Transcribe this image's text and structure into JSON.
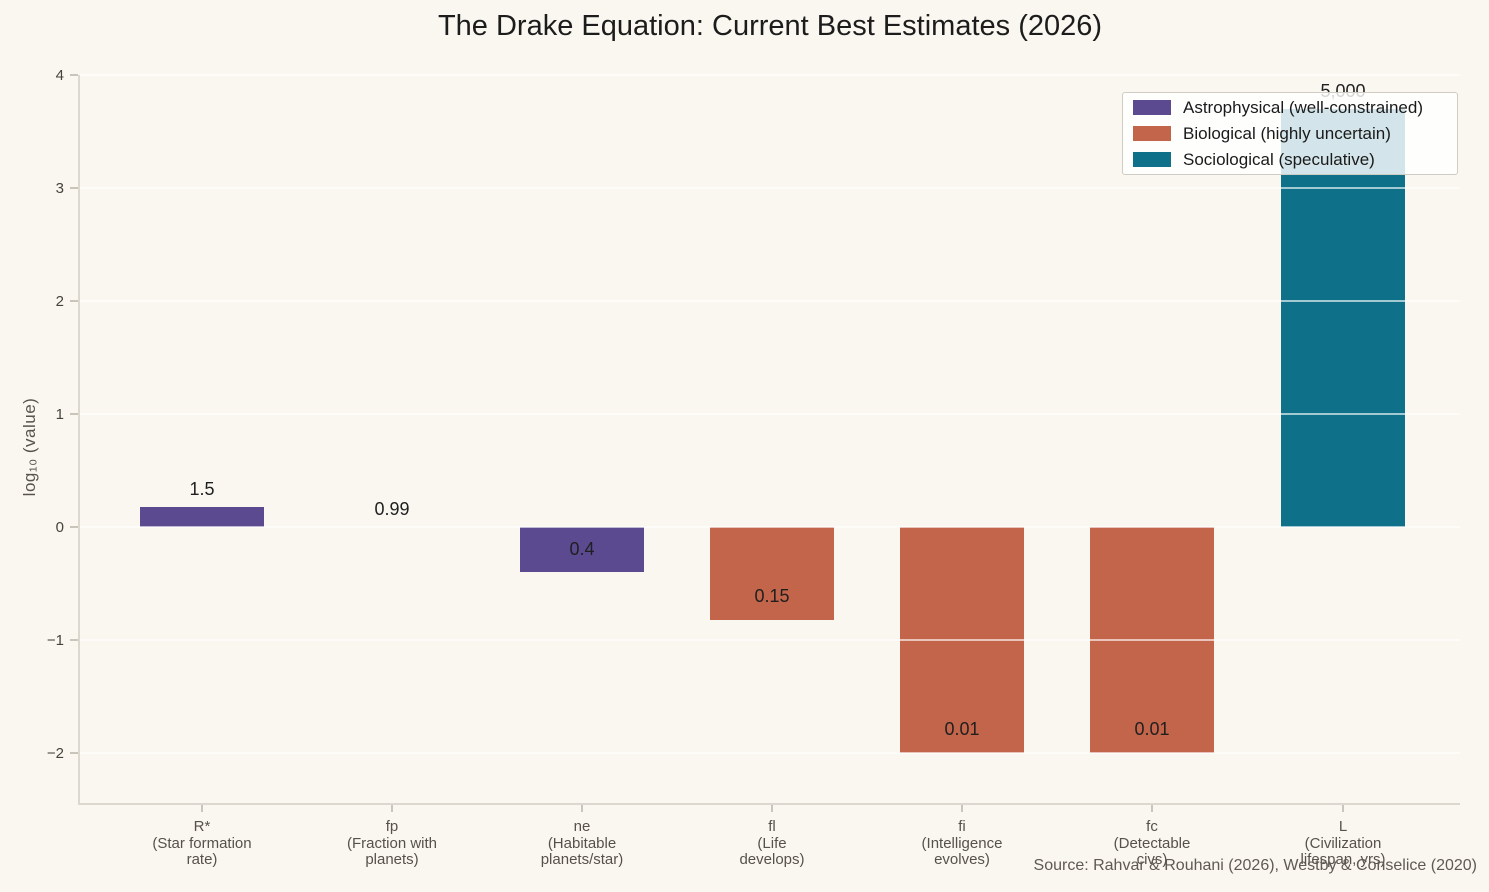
{
  "title": "The Drake Equation: Current Best Estimates (2026)",
  "source": "Source: Rahvar & Rouhani (2026), Westby & Conselice (2020)",
  "y_axis": {
    "label": "log₁₀  (value)",
    "ticks": [
      {
        "label": "4",
        "value": 4
      },
      {
        "label": "3",
        "value": 3
      },
      {
        "label": "2",
        "value": 2
      },
      {
        "label": "1",
        "value": 1
      },
      {
        "label": "0",
        "value": 0
      },
      {
        "label": "−1",
        "value": -1
      },
      {
        "label": "−2",
        "value": -2
      }
    ]
  },
  "legend": [
    {
      "label": "Astrophysical (well-constrained)",
      "color": "#5b4a8f"
    },
    {
      "label": "Biological (highly uncertain)",
      "color": "#c2654a"
    },
    {
      "label": "Sociological (speculative)",
      "color": "#0f7189"
    }
  ],
  "chart_data": {
    "type": "bar",
    "title": "The Drake Equation: Current Best Estimates (2026)",
    "xlabel": "",
    "ylabel": "log₁₀  (value)",
    "ylim": [
      -2.5,
      4
    ],
    "grid": true,
    "legend_position": "upper right",
    "categories": [
      "R* (Star formation rate)",
      "fp (Fraction with planets)",
      "ne (Habitable planets/star)",
      "fl (Life develops)",
      "fi (Intelligence evolves)",
      "fc (Detectable civs)",
      "L (Civilization lifespan, yrs)"
    ],
    "values": [
      1.5,
      0.99,
      0.4,
      0.15,
      0.01,
      0.01,
      5000
    ],
    "log_values": [
      0.176,
      -0.004,
      -0.398,
      -0.824,
      -2.0,
      -2.0,
      3.699
    ],
    "bars": [
      {
        "key": "R*",
        "value": 1.5,
        "log_value": 0.176,
        "value_label": "1.5",
        "group": "Astrophysical",
        "color": "#5b4a8f",
        "label_lines": [
          "R*",
          "(Star formation",
          "rate)"
        ],
        "value_label_placement": "above"
      },
      {
        "key": "fp",
        "value": 0.99,
        "log_value": -0.004,
        "value_label": "0.99",
        "group": "Astrophysical",
        "color": "#5b4a8f",
        "label_lines": [
          "fp",
          "(Fraction with",
          "planets)"
        ],
        "value_label_placement": "above"
      },
      {
        "key": "ne",
        "value": 0.4,
        "log_value": -0.398,
        "value_label": "0.4",
        "group": "Astrophysical",
        "color": "#5b4a8f",
        "label_lines": [
          "ne",
          "(Habitable",
          "planets/star)"
        ],
        "value_label_placement": "inside-center"
      },
      {
        "key": "fl",
        "value": 0.15,
        "log_value": -0.824,
        "value_label": "0.15",
        "group": "Biological",
        "color": "#c2654a",
        "label_lines": [
          "fl",
          "(Life",
          "develops)"
        ],
        "value_label_placement": "inside-bottom"
      },
      {
        "key": "fi",
        "value": 0.01,
        "log_value": -2.0,
        "value_label": "0.01",
        "group": "Biological",
        "color": "#c2654a",
        "label_lines": [
          "fi",
          "(Intelligence",
          "evolves)"
        ],
        "value_label_placement": "inside-bottom"
      },
      {
        "key": "fc",
        "value": 0.01,
        "log_value": -2.0,
        "value_label": "0.01",
        "group": "Biological",
        "color": "#c2654a",
        "label_lines": [
          "fc",
          "(Detectable",
          "civs)"
        ],
        "value_label_placement": "inside-bottom"
      },
      {
        "key": "L",
        "value": 5000,
        "log_value": 3.699,
        "value_label": "5,000",
        "group": "Sociological",
        "color": "#0f7189",
        "label_lines": [
          "L",
          "(Civilization",
          "lifespan, yrs)"
        ],
        "value_label_placement": "above"
      }
    ]
  }
}
